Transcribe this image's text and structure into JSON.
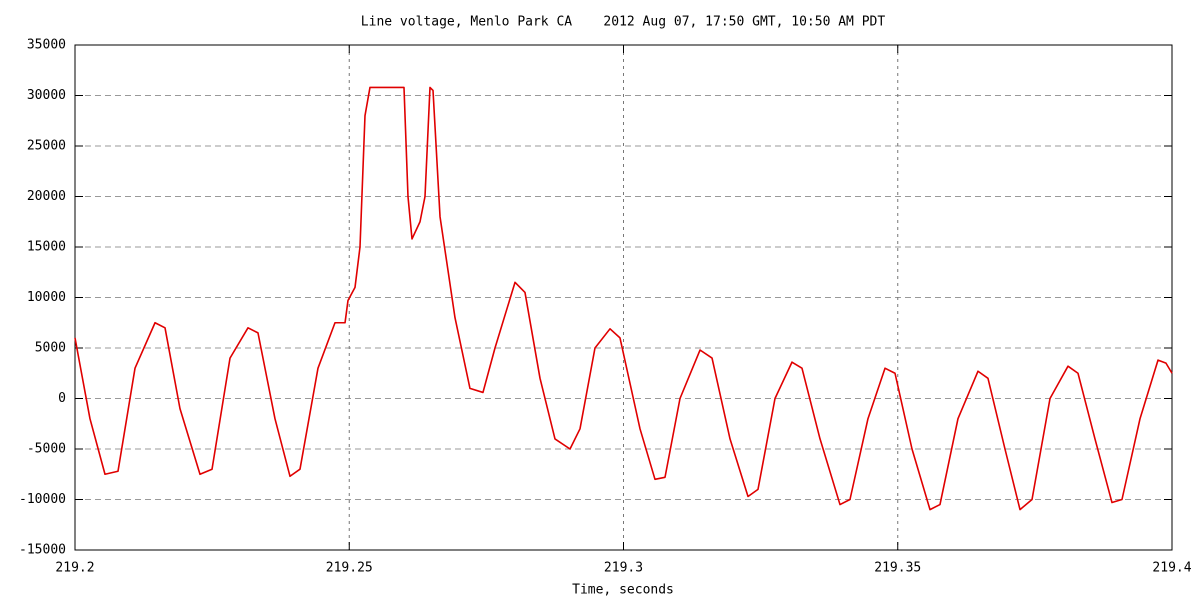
{
  "chart_data": {
    "type": "line",
    "title": "Line voltage, Menlo Park CA    2012 Aug 07, 17:50 GMT, 10:50 AM PDT",
    "x_label": "Time, seconds",
    "x": [
      219.2,
      219.20273,
      219.20547,
      219.20784,
      219.21094,
      219.21459,
      219.21641,
      219.21914,
      219.22279,
      219.22498,
      219.22826,
      219.23154,
      219.23336,
      219.23646,
      219.2392,
      219.24102,
      219.2443,
      219.2474,
      219.24923,
      219.24977,
      219.25105,
      219.25196,
      219.25287,
      219.25378,
      219.25998,
      219.26071,
      219.26144,
      219.2629,
      219.26381,
      219.26472,
      219.26527,
      219.26655,
      219.26928,
      219.27201,
      219.27438,
      219.27657,
      219.28022,
      219.28204,
      219.28478,
      219.28751,
      219.29025,
      219.29207,
      219.2948,
      219.29754,
      219.29936,
      219.30301,
      219.30574,
      219.30757,
      219.3103,
      219.31395,
      219.31614,
      219.31942,
      219.3227,
      219.32452,
      219.32762,
      219.33072,
      219.33254,
      219.33583,
      219.33947,
      219.34129,
      219.34457,
      219.34768,
      219.3495,
      219.3526,
      219.35588,
      219.3577,
      219.36098,
      219.36463,
      219.36645,
      219.36955,
      219.37229,
      219.37448,
      219.37776,
      219.38104,
      219.38286,
      219.38596,
      219.38906,
      219.39088,
      219.39417,
      219.39745,
      219.3989,
      219.4
    ],
    "values": [
      6000,
      -2000,
      -7500,
      -7200,
      3000,
      7500,
      7000,
      -1000,
      -7500,
      -7000,
      4000,
      7000,
      6500,
      -2000,
      -7700,
      -7000,
      3000,
      7500,
      7500,
      9700,
      11000,
      15000,
      28000,
      30800,
      30800,
      20000,
      15800,
      17500,
      20000,
      30800,
      30500,
      18000,
      8000,
      1000,
      600,
      5000,
      11500,
      10500,
      2000,
      -4000,
      -5000,
      -3000,
      5000,
      6900,
      6000,
      -3000,
      -8000,
      -7800,
      0,
      4800,
      4000,
      -4000,
      -9700,
      -9000,
      0,
      3600,
      3000,
      -4000,
      -10500,
      -10000,
      -2000,
      3000,
      2500,
      -5000,
      -11000,
      -10500,
      -2000,
      2700,
      2000,
      -5000,
      -11000,
      -10000,
      0,
      3200,
      2500,
      -4000,
      -10300,
      -10000,
      -2000,
      3800,
      3500,
      2500
    ],
    "color": "#e00000",
    "xlim": [
      219.2,
      219.4
    ],
    "xticks": [
      219.2,
      219.25,
      219.3,
      219.35,
      219.4
    ],
    "ylim": [
      -15000,
      35000
    ],
    "yticks": [
      -15000,
      -10000,
      -5000,
      0,
      5000,
      10000,
      15000,
      20000,
      25000,
      30000,
      35000
    ],
    "grid": true
  }
}
